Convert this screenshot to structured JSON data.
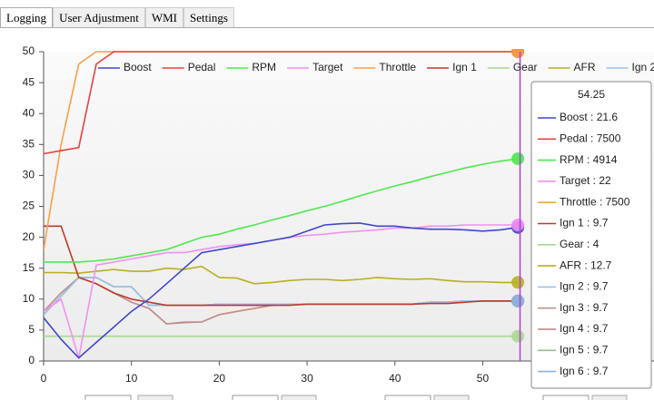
{
  "tabs": [
    "Logging",
    "User Adjustment",
    "WMI",
    "Settings"
  ],
  "chart_data": {
    "type": "line",
    "x": [
      0,
      2,
      4,
      6,
      8,
      10,
      12,
      14,
      16,
      18,
      20,
      22,
      24,
      26,
      28,
      30,
      32,
      34,
      36,
      38,
      40,
      42,
      44,
      46,
      48,
      50,
      52,
      54
    ],
    "xlim": [
      0,
      69.5
    ],
    "xticks": [
      0,
      10,
      20,
      30,
      40,
      50
    ],
    "ylim": [
      0,
      50
    ],
    "yticks": [
      0,
      5,
      10,
      15,
      20,
      25,
      30,
      35,
      40,
      45,
      50
    ],
    "cursor": 54.25,
    "series": [
      {
        "name": "Boost",
        "color": "#3f48cc",
        "values": [
          7,
          3.5,
          0.5,
          3,
          5.5,
          8,
          10,
          12.5,
          15,
          17.5,
          18,
          18.5,
          19,
          19.5,
          20,
          21,
          22,
          22.2,
          22.3,
          21.8,
          21.8,
          21.5,
          21.3,
          21.3,
          21.2,
          21,
          21.2,
          21.6
        ]
      },
      {
        "name": "Pedal",
        "color": "#e8423f",
        "values": [
          33.5,
          34,
          34.5,
          48,
          50,
          50,
          50,
          50,
          50,
          50,
          50,
          50,
          50,
          50,
          50,
          50,
          50,
          50,
          50,
          50,
          50,
          50,
          50,
          50,
          50,
          50,
          50,
          50
        ]
      },
      {
        "name": "RPM",
        "color": "#4de84d",
        "values": [
          16,
          16,
          16,
          16.2,
          16.5,
          17,
          17.5,
          18,
          19,
          20,
          20.5,
          21.3,
          22,
          22.8,
          23.5,
          24.3,
          25,
          25.8,
          26.7,
          27.5,
          28.3,
          29,
          29.8,
          30.5,
          31.2,
          31.8,
          32.3,
          32.7
        ]
      },
      {
        "name": "Target",
        "color": "#f290f2",
        "values": [
          8,
          10,
          0.5,
          15.5,
          16,
          16.5,
          17,
          17.5,
          17.5,
          18,
          18.5,
          18.8,
          19,
          19.5,
          20,
          20.3,
          20.5,
          20.8,
          21,
          21.2,
          21.5,
          21.5,
          21.8,
          21.8,
          22,
          22,
          22,
          22
        ]
      },
      {
        "name": "Throttle",
        "color": "#f7a04a",
        "values": [
          18,
          35,
          48,
          50,
          50,
          50,
          50,
          50,
          50,
          50,
          50,
          50,
          50,
          50,
          50,
          50,
          50,
          50,
          50,
          50,
          50,
          50,
          50,
          50,
          50,
          50,
          50,
          50
        ]
      },
      {
        "name": "Ign 1",
        "color": "#c0392b",
        "values": [
          21.8,
          21.8,
          13.5,
          12.5,
          11,
          10,
          9.5,
          9,
          9,
          9,
          9,
          9,
          9,
          9,
          9,
          9.2,
          9.2,
          9.2,
          9.2,
          9.2,
          9.2,
          9.2,
          9.3,
          9.3,
          9.5,
          9.7,
          9.7,
          9.7
        ]
      },
      {
        "name": "Gear",
        "color": "#a8d890",
        "values": [
          4,
          4,
          4,
          4,
          4,
          4,
          4,
          4,
          4,
          4,
          4,
          4,
          4,
          4,
          4,
          4,
          4,
          4,
          4,
          4,
          4,
          4,
          4,
          4,
          4,
          4,
          4,
          4
        ]
      },
      {
        "name": "AFR",
        "color": "#b8b020",
        "values": [
          14.3,
          14.3,
          14.2,
          14.5,
          14.8,
          14.5,
          14.5,
          15,
          14.8,
          15.3,
          13.5,
          13.4,
          12.5,
          12.7,
          13,
          13.2,
          13.2,
          13,
          13.2,
          13.5,
          13.3,
          13.2,
          13.3,
          13,
          12.8,
          12.8,
          12.7,
          12.7
        ]
      },
      {
        "name": "Ign 2",
        "color": "#9ec0e6",
        "values": [
          7.5,
          10.5,
          13.5,
          13.5,
          12,
          12,
          9,
          9,
          9,
          9,
          9.2,
          9.2,
          9.2,
          9.2,
          9.2,
          9.2,
          9.2,
          9.2,
          9.2,
          9.2,
          9.2,
          9.2,
          9.5,
          9.5,
          9.7,
          9.7,
          9.7,
          9.7
        ]
      },
      {
        "name": "Ign 3",
        "color": "#c09090",
        "values": [
          8,
          11,
          13.5,
          12.5,
          11,
          9.5,
          8.5,
          6,
          6.3,
          6.3,
          7.5,
          8,
          8.5,
          9,
          9.2,
          9.2,
          9.2,
          9.2,
          9.2,
          9.2,
          9.2,
          9.2,
          9.5,
          9.5,
          9.7,
          9.7,
          9.7,
          9.7
        ]
      },
      {
        "name": "Ign 4",
        "color": "#c47f7f",
        "values": [
          8,
          11,
          13.5,
          12.5,
          11,
          9.5,
          8.5,
          6,
          6.2,
          6.3,
          7.5,
          8,
          8.5,
          9,
          9.2,
          9.2,
          9.2,
          9.2,
          9.2,
          9.2,
          9.2,
          9.2,
          9.5,
          9.5,
          9.7,
          9.7,
          9.7,
          9.7
        ]
      },
      {
        "name": "Ign 5",
        "color": "#90c090",
        "values": [
          7.5,
          10.5,
          13.5,
          13.5,
          12,
          12,
          9,
          9,
          9,
          9,
          9.2,
          9.2,
          9.2,
          9.2,
          9.2,
          9.2,
          9.2,
          9.2,
          9.2,
          9.2,
          9.2,
          9.2,
          9.5,
          9.5,
          9.7,
          9.7,
          9.7,
          9.7
        ]
      },
      {
        "name": "Ign 6",
        "color": "#8fb0e0",
        "values": [
          7.5,
          10.5,
          13.5,
          13.5,
          12,
          12,
          9,
          9,
          9,
          9,
          9.2,
          9.2,
          9.2,
          9.2,
          9.2,
          9.2,
          9.2,
          9.2,
          9.2,
          9.2,
          9.2,
          9.2,
          9.5,
          9.5,
          9.7,
          9.7,
          9.7,
          9.7
        ]
      }
    ],
    "tooltip": [
      "Boost : 21.6",
      "Pedal : 7500",
      "RPM : 4914",
      "Target : 22",
      "Throttle : 7500",
      "Ign 1 : 9.7",
      "Gear : 4",
      "AFR : 12.7",
      "Ign 2 : 9.7",
      "Ign 3 : 9.7",
      "Ign 4 : 9.7",
      "Ign 5 : 9.7",
      "Ign 6 : 9.7"
    ]
  }
}
